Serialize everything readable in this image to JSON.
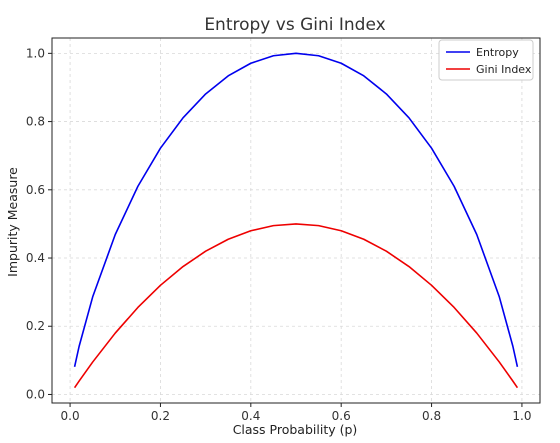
{
  "chart_data": {
    "type": "line",
    "title": "Entropy vs Gini Index",
    "xlabel": "Class Probability (p)",
    "ylabel": "Impurity Measure",
    "xlim": [
      -0.04,
      1.04
    ],
    "ylim": [
      -0.025,
      1.045
    ],
    "xticks": [
      0.0,
      0.2,
      0.4,
      0.6,
      0.8,
      1.0
    ],
    "xtick_labels": [
      "0.0",
      "0.2",
      "0.4",
      "0.6",
      "0.8",
      "1.0"
    ],
    "yticks": [
      0.0,
      0.2,
      0.4,
      0.6,
      0.8,
      1.0
    ],
    "ytick_labels": [
      "0.0",
      "0.2",
      "0.4",
      "0.6",
      "0.8",
      "1.0"
    ],
    "grid": true,
    "legend_position": "top-right",
    "x": [
      0.01,
      0.02,
      0.05,
      0.1,
      0.15,
      0.2,
      0.25,
      0.3,
      0.35,
      0.4,
      0.45,
      0.5,
      0.55,
      0.6,
      0.65,
      0.7,
      0.75,
      0.8,
      0.85,
      0.9,
      0.95,
      0.98,
      0.99
    ],
    "series": [
      {
        "name": "Entropy",
        "color": "#0000ee",
        "values": [
          0.081,
          0.141,
          0.286,
          0.469,
          0.61,
          0.722,
          0.811,
          0.881,
          0.934,
          0.971,
          0.993,
          1.0,
          0.993,
          0.971,
          0.934,
          0.881,
          0.811,
          0.722,
          0.61,
          0.469,
          0.286,
          0.141,
          0.081
        ]
      },
      {
        "name": "Gini Index",
        "color": "#ee0000",
        "values": [
          0.0198,
          0.0392,
          0.095,
          0.18,
          0.255,
          0.32,
          0.375,
          0.42,
          0.455,
          0.48,
          0.495,
          0.5,
          0.495,
          0.48,
          0.455,
          0.42,
          0.375,
          0.32,
          0.255,
          0.18,
          0.095,
          0.0392,
          0.0198
        ]
      }
    ]
  }
}
